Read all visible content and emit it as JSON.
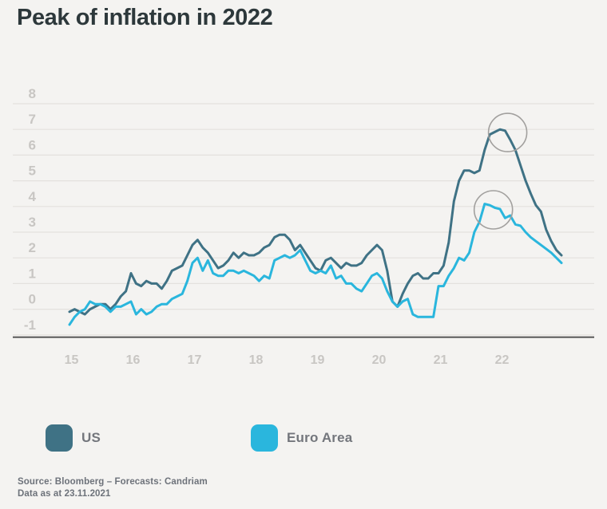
{
  "title": "Peak of inflation in 2022",
  "legend": {
    "us_label": "US",
    "euro_label": "Euro Area"
  },
  "footer": {
    "line1": "Source: Bloomberg – Forecasts: Candriam",
    "line2": "Data as at 23.11.2021"
  },
  "colors": {
    "background": "#f4f3f1",
    "title_text": "#2d383b",
    "gridline": "#e3e1de",
    "axis_baseline": "#454545",
    "axis_tick_text": "#c8c6c3",
    "us_series": "#3f7285",
    "euro_series": "#2ab6dd",
    "annotation_circle": "#a2a09e",
    "legend_text": "#73767c",
    "footer_text": "#6d727a"
  },
  "chart_data": {
    "type": "line",
    "title": "Peak of inflation in 2022",
    "xlabel": "",
    "ylabel": "",
    "x_unit": "month",
    "x_start": "2015-01",
    "x_end": "2023-01",
    "x_ticks": [
      "15",
      "16",
      "17",
      "18",
      "19",
      "20",
      "21",
      "22"
    ],
    "y_ticks": [
      8,
      7,
      6,
      5,
      4,
      3,
      2,
      1,
      0,
      -1
    ],
    "ylim": [
      -1,
      8
    ],
    "grid": "horizontal",
    "legend_position": "bottom",
    "series": [
      {
        "name": "US",
        "color": "#3f7285",
        "values": [
          -0.1,
          0.0,
          -0.1,
          -0.2,
          0.0,
          0.1,
          0.2,
          0.2,
          0.0,
          0.2,
          0.5,
          0.7,
          1.4,
          1.0,
          0.9,
          1.1,
          1.0,
          1.0,
          0.8,
          1.1,
          1.5,
          1.6,
          1.7,
          2.1,
          2.5,
          2.7,
          2.4,
          2.2,
          1.9,
          1.6,
          1.7,
          1.9,
          2.2,
          2.0,
          2.2,
          2.1,
          2.1,
          2.2,
          2.4,
          2.5,
          2.8,
          2.9,
          2.9,
          2.7,
          2.3,
          2.5,
          2.2,
          1.9,
          1.6,
          1.5,
          1.9,
          2.0,
          1.8,
          1.6,
          1.8,
          1.7,
          1.7,
          1.8,
          2.1,
          2.3,
          2.5,
          2.3,
          1.5,
          0.3,
          0.1,
          0.6,
          1.0,
          1.3,
          1.4,
          1.2,
          1.2,
          1.4,
          1.4,
          1.7,
          2.6,
          4.2,
          5.0,
          5.4,
          5.4,
          5.3,
          5.4,
          6.2,
          6.8,
          6.9,
          7.0,
          6.95,
          6.6,
          6.2,
          5.6,
          5.0,
          4.5,
          4.05,
          3.8,
          3.1,
          2.65,
          2.3,
          2.1
        ]
      },
      {
        "name": "Euro Area",
        "color": "#2ab6dd",
        "values": [
          -0.6,
          -0.3,
          -0.1,
          0.0,
          0.3,
          0.2,
          0.2,
          0.1,
          -0.1,
          0.1,
          0.1,
          0.2,
          0.3,
          -0.2,
          0.0,
          -0.2,
          -0.1,
          0.1,
          0.2,
          0.2,
          0.4,
          0.5,
          0.6,
          1.1,
          1.8,
          2.0,
          1.5,
          1.9,
          1.4,
          1.3,
          1.3,
          1.5,
          1.5,
          1.4,
          1.5,
          1.4,
          1.3,
          1.1,
          1.3,
          1.2,
          1.9,
          2.0,
          2.1,
          2.0,
          2.1,
          2.3,
          1.9,
          1.5,
          1.4,
          1.5,
          1.4,
          1.7,
          1.2,
          1.3,
          1.0,
          1.0,
          0.8,
          0.7,
          1.0,
          1.3,
          1.4,
          1.2,
          0.7,
          0.3,
          0.1,
          0.3,
          0.4,
          -0.2,
          -0.3,
          -0.3,
          -0.3,
          -0.3,
          0.9,
          0.9,
          1.3,
          1.6,
          2.0,
          1.9,
          2.2,
          3.0,
          3.4,
          4.1,
          4.05,
          3.95,
          3.9,
          3.55,
          3.65,
          3.3,
          3.25,
          3.0,
          2.8,
          2.65,
          2.5,
          2.35,
          2.2,
          2.0,
          1.8
        ]
      }
    ],
    "annotations": [
      {
        "type": "circle",
        "series": "US",
        "month_index": 85.5,
        "value": 6.88,
        "radius_px": 24,
        "meaning": "peak of US inflation in 2022"
      },
      {
        "type": "circle",
        "series": "Euro Area",
        "month_index": 82.7,
        "value": 3.87,
        "radius_px": 24,
        "meaning": "peak of Euro Area inflation"
      }
    ]
  }
}
